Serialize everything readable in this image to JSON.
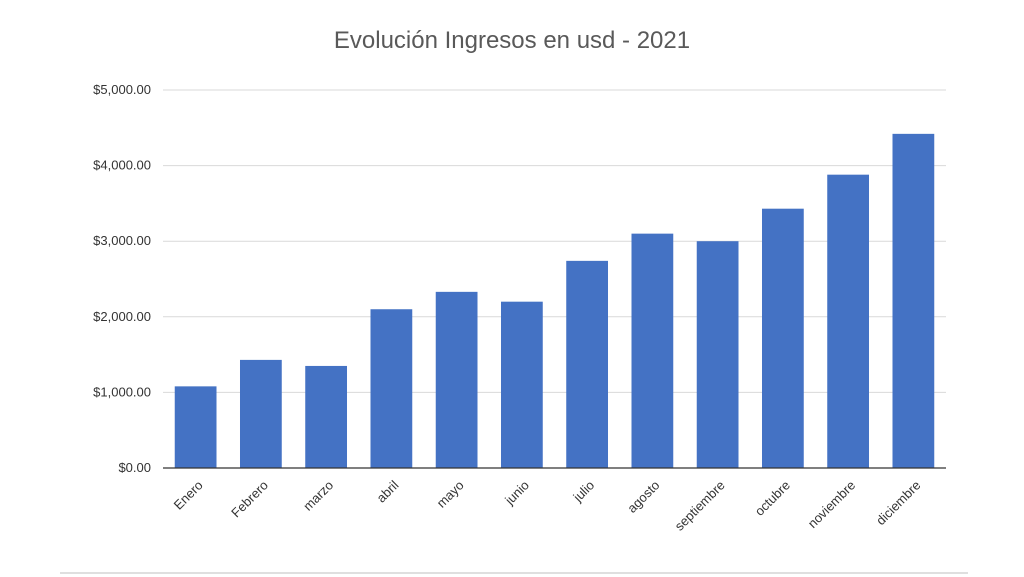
{
  "chart_data": {
    "type": "bar",
    "title": "Evolución Ingresos en usd - 2021",
    "xlabel": "",
    "ylabel": "",
    "categories": [
      "Enero",
      "Febrero",
      "marzo",
      "abril",
      "mayo",
      "junio",
      "julio",
      "agosto",
      "septiembre",
      "octubre",
      "noviembre",
      "diciembre"
    ],
    "values": [
      1080,
      1430,
      1350,
      2100,
      2330,
      2200,
      2740,
      3100,
      3000,
      3430,
      3880,
      4420
    ],
    "ylim": [
      0,
      5000
    ],
    "yticks": [
      0,
      1000,
      2000,
      3000,
      4000,
      5000
    ],
    "ytick_labels": [
      "$0.00",
      "$1,000.00",
      "$2,000.00",
      "$3,000.00",
      "$4,000.00",
      "$5,000.00"
    ],
    "grid": true,
    "legend": "none",
    "colors": {
      "bar": "#4472c4"
    }
  }
}
